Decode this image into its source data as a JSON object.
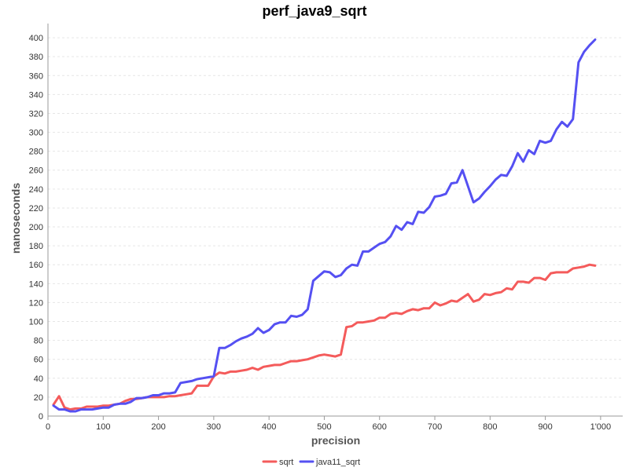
{
  "chart_data": {
    "type": "line",
    "title": "perf_java9_sqrt",
    "xlabel": "precision",
    "ylabel": "nanoseconds",
    "xlim": [
      0,
      1040
    ],
    "ylim": [
      0,
      415
    ],
    "x_ticks": [
      0,
      100,
      200,
      300,
      400,
      500,
      600,
      700,
      800,
      900,
      1000
    ],
    "x_tick_labels": [
      "0",
      "100",
      "200",
      "300",
      "400",
      "500",
      "600",
      "700",
      "800",
      "900",
      "1'000"
    ],
    "y_ticks": [
      0,
      20,
      40,
      60,
      80,
      100,
      120,
      140,
      160,
      180,
      200,
      220,
      240,
      260,
      280,
      300,
      320,
      340,
      360,
      380,
      400
    ],
    "grid": true,
    "legend_position": "bottom-center",
    "x": [
      10,
      20,
      30,
      40,
      50,
      60,
      70,
      80,
      90,
      100,
      110,
      120,
      130,
      140,
      150,
      160,
      170,
      180,
      190,
      200,
      210,
      220,
      230,
      240,
      250,
      260,
      270,
      280,
      290,
      300,
      310,
      320,
      330,
      340,
      350,
      360,
      370,
      380,
      390,
      400,
      410,
      420,
      430,
      440,
      450,
      460,
      470,
      480,
      490,
      500,
      510,
      520,
      530,
      540,
      550,
      560,
      570,
      580,
      590,
      600,
      610,
      620,
      630,
      640,
      650,
      660,
      670,
      680,
      690,
      700,
      710,
      720,
      730,
      740,
      750,
      760,
      770,
      780,
      790,
      800,
      810,
      820,
      830,
      840,
      850,
      860,
      870,
      880,
      890,
      900,
      910,
      920,
      930,
      940,
      950,
      960,
      970,
      980,
      990
    ],
    "series": [
      {
        "name": "sqrt",
        "color": "#f45b5b",
        "values": [
          12,
          21,
          9,
          7,
          8,
          8,
          10,
          10,
          10,
          11,
          11,
          12,
          13,
          16,
          18,
          18,
          19,
          20,
          20,
          20,
          20,
          21,
          21,
          22,
          23,
          24,
          32,
          32,
          32,
          42,
          46,
          45,
          47,
          47,
          48,
          49,
          51,
          49,
          52,
          53,
          54,
          54,
          56,
          58,
          58,
          59,
          60,
          62,
          64,
          65,
          64,
          63,
          65,
          94,
          95,
          99,
          99,
          100,
          101,
          104,
          104,
          108,
          109,
          108,
          111,
          113,
          112,
          114,
          114,
          120,
          117,
          119,
          122,
          121,
          125,
          129,
          121,
          123,
          129,
          128,
          130,
          131,
          135,
          134,
          142,
          142,
          141,
          146,
          146,
          144,
          151,
          152,
          152,
          152,
          156,
          157,
          158,
          160,
          159
        ]
      },
      {
        "name": "java11_sqrt",
        "color": "#5550f2",
        "values": [
          11,
          7,
          7,
          5,
          5,
          7,
          7,
          7,
          8,
          9,
          9,
          12,
          13,
          13,
          15,
          19,
          19,
          20,
          22,
          22,
          24,
          24,
          25,
          35,
          36,
          37,
          39,
          40,
          41,
          42,
          72,
          72,
          75,
          79,
          82,
          84,
          87,
          93,
          88,
          91,
          97,
          99,
          99,
          106,
          105,
          107,
          113,
          143,
          148,
          153,
          152,
          147,
          149,
          156,
          160,
          159,
          174,
          174,
          178,
          182,
          184,
          190,
          201,
          197,
          205,
          203,
          216,
          215,
          221,
          232,
          233,
          235,
          246,
          247,
          260,
          243,
          226,
          230,
          237,
          243,
          250,
          255,
          254,
          264,
          278,
          269,
          281,
          277,
          291,
          289,
          291,
          303,
          311,
          306,
          314,
          374,
          385,
          392,
          398
        ]
      }
    ]
  }
}
